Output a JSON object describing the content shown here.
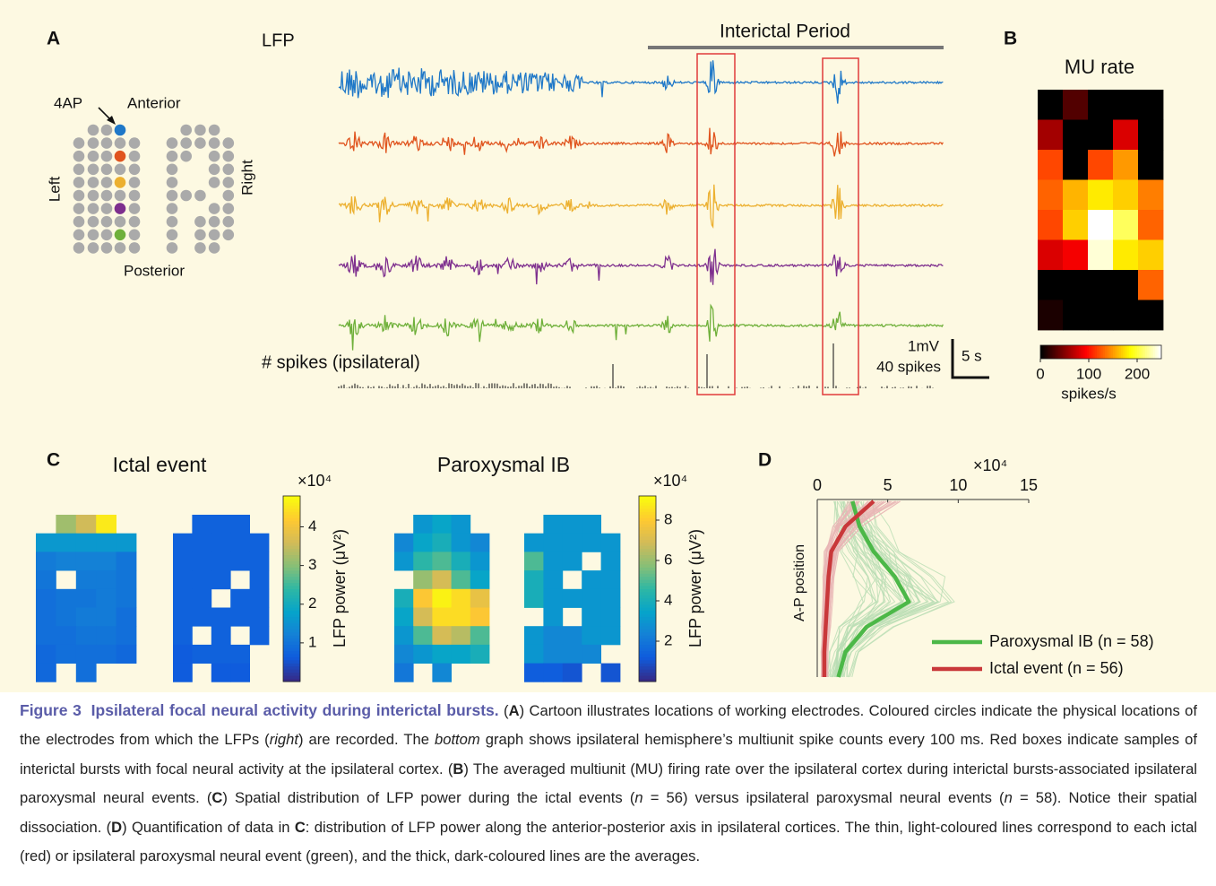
{
  "panel_a": {
    "label": "A",
    "lfp_label": "LFP",
    "interictal_label": "Interictal Period",
    "stim_label": "4AP",
    "anterior": "Anterior",
    "posterior": "Posterior",
    "left": "Left",
    "right": "Right",
    "spikes_label": "# spikes (ipsilateral)",
    "scale_mv": "1mV",
    "scale_spikes": "40 spikes",
    "scale_time": "5 s"
  },
  "panel_b": {
    "label": "B",
    "chart_data": {
      "type": "heatmap",
      "title": "MU rate",
      "colormap": "hot",
      "clim": [
        0,
        250
      ],
      "colorbar_ticks": [
        0,
        100,
        200
      ],
      "colorbar_label": "spikes/s",
      "values": [
        [
          0,
          30,
          0,
          0,
          0
        ],
        [
          60,
          0,
          0,
          80,
          0
        ],
        [
          120,
          0,
          120,
          150,
          0
        ],
        [
          130,
          160,
          180,
          170,
          140
        ],
        [
          120,
          170,
          250,
          210,
          130
        ],
        [
          80,
          90,
          240,
          180,
          170
        ],
        [
          0,
          0,
          0,
          0,
          130
        ],
        [
          10,
          0,
          0,
          0,
          0
        ]
      ]
    }
  },
  "panel_c": {
    "label": "C",
    "charts": [
      {
        "type": "heatmap",
        "title": "Ictal event",
        "colormap": "parula",
        "clim": [
          0,
          4.8
        ],
        "colorbar_ticks": [
          1,
          2,
          3,
          4
        ],
        "colorbar_multiplier": "×10⁴",
        "colorbar_label": "LFP power (μV²)",
        "maps": [
          [
            [
              null,
              3.2,
              3.6,
              4.6,
              null
            ],
            [
              1.6,
              1.6,
              1.6,
              1.6,
              1.6
            ],
            [
              1.1,
              1.2,
              1.2,
              1.2,
              1.0
            ],
            [
              1.0,
              null,
              1.1,
              1.1,
              1.0
            ],
            [
              0.9,
              1.0,
              1.0,
              1.1,
              1.0
            ],
            [
              0.9,
              1.0,
              1.1,
              1.1,
              0.9
            ],
            [
              0.9,
              0.9,
              1.0,
              1.0,
              0.9
            ],
            [
              0.8,
              0.9,
              0.9,
              0.9,
              0.8
            ],
            [
              0.8,
              null,
              0.9,
              null,
              null
            ]
          ],
          [
            [
              null,
              0.7,
              0.7,
              0.7,
              null
            ],
            [
              0.7,
              0.7,
              0.7,
              0.7,
              0.7
            ],
            [
              0.7,
              0.7,
              0.7,
              0.7,
              0.7
            ],
            [
              0.7,
              0.7,
              0.7,
              null,
              0.7
            ],
            [
              0.7,
              0.7,
              null,
              0.7,
              0.7
            ],
            [
              0.7,
              0.7,
              0.7,
              0.7,
              0.7
            ],
            [
              0.7,
              null,
              0.7,
              null,
              0.7
            ],
            [
              0.6,
              0.7,
              0.7,
              0.7,
              null
            ],
            [
              0.6,
              null,
              0.6,
              0.6,
              null
            ]
          ]
        ]
      },
      {
        "type": "heatmap",
        "title": "Paroxysmal IB",
        "colormap": "parula",
        "clim": [
          0,
          9.2
        ],
        "colorbar_ticks": [
          2,
          4,
          6,
          8
        ],
        "colorbar_multiplier": "×10⁴",
        "colorbar_label": "LFP power (μV²)",
        "maps": [
          [
            [
              null,
              3,
              3.5,
              3,
              null
            ],
            [
              2.5,
              3.5,
              4,
              3,
              2.5
            ],
            [
              3,
              4.5,
              5,
              4,
              3
            ],
            [
              null,
              6,
              7,
              5,
              3.5
            ],
            [
              4,
              8,
              9,
              8.5,
              7.5
            ],
            [
              3.5,
              7,
              8.5,
              8.5,
              8
            ],
            [
              3,
              5,
              7,
              6.5,
              5
            ],
            [
              2.5,
              3,
              3.5,
              3.5,
              4
            ],
            [
              2,
              null,
              2.5,
              null,
              null
            ]
          ],
          [
            [
              null,
              3,
              3,
              3,
              null
            ],
            [
              3,
              3,
              3,
              3,
              3
            ],
            [
              5,
              3,
              3,
              null,
              3
            ],
            [
              4,
              3,
              null,
              3,
              3
            ],
            [
              4,
              3,
              3,
              3,
              3
            ],
            [
              null,
              3,
              null,
              3,
              3
            ],
            [
              3,
              2.5,
              2.5,
              3,
              3
            ],
            [
              3,
              2.5,
              2.5,
              2.5,
              null
            ],
            [
              1.2,
              1.2,
              1.0,
              null,
              1.0
            ]
          ]
        ]
      }
    ]
  },
  "panel_d": {
    "label": "D",
    "chart_data": {
      "type": "line",
      "x_multiplier": "×10⁴",
      "ylabel": "A-P position",
      "xlim": [
        0,
        15
      ],
      "xticks": [
        0,
        5,
        10,
        15
      ],
      "series": [
        {
          "name": "Paroxysmal IB (n = 58)",
          "color": "#4cb848",
          "values": [
            2.5,
            3,
            4,
            5.5,
            6.5,
            3.5,
            2,
            1.5
          ]
        },
        {
          "name": "Ictal event (n = 56)",
          "color": "#c9383a",
          "values": [
            4,
            2,
            1,
            0.8,
            0.7,
            0.6,
            0.5,
            0.5
          ]
        }
      ]
    }
  },
  "caption": {
    "segments": [
      "Figure 3",
      "Ipsilateral focal neural activity during interictal bursts.",
      " (",
      "A",
      ") Cartoon illustrates locations of working electrodes. Coloured circles indicate the physical locations of the electrodes from which the LFPs (",
      "right",
      ") are recorded. The ",
      "bottom",
      " graph shows ipsilateral hemisphere’s multiunit spike counts every 100 ms. Red boxes indicate samples of interictal bursts with focal neural activity at the ipsilateral cortex. (",
      "B",
      ") The averaged multiunit (MU) firing rate over the ipsilateral cortex during interictal bursts-associated ipsilateral paroxysmal neural events. (",
      "C",
      ") Spatial distribution of LFP power during the ictal events (",
      "n",
      " = 56) versus ipsilateral paroxysmal neural events (",
      "n",
      " = 58). Notice their spatial dissociation. (",
      "D",
      ") Quantification of data in ",
      "C",
      ": distribution of LFP power along the anterior-posterior axis in ipsilateral cortices. The thin, light-coloured lines correspond to each ictal (red) or ipsilateral paroxysmal neural event (green), and the thick, dark-coloured lines are the averages."
    ]
  }
}
